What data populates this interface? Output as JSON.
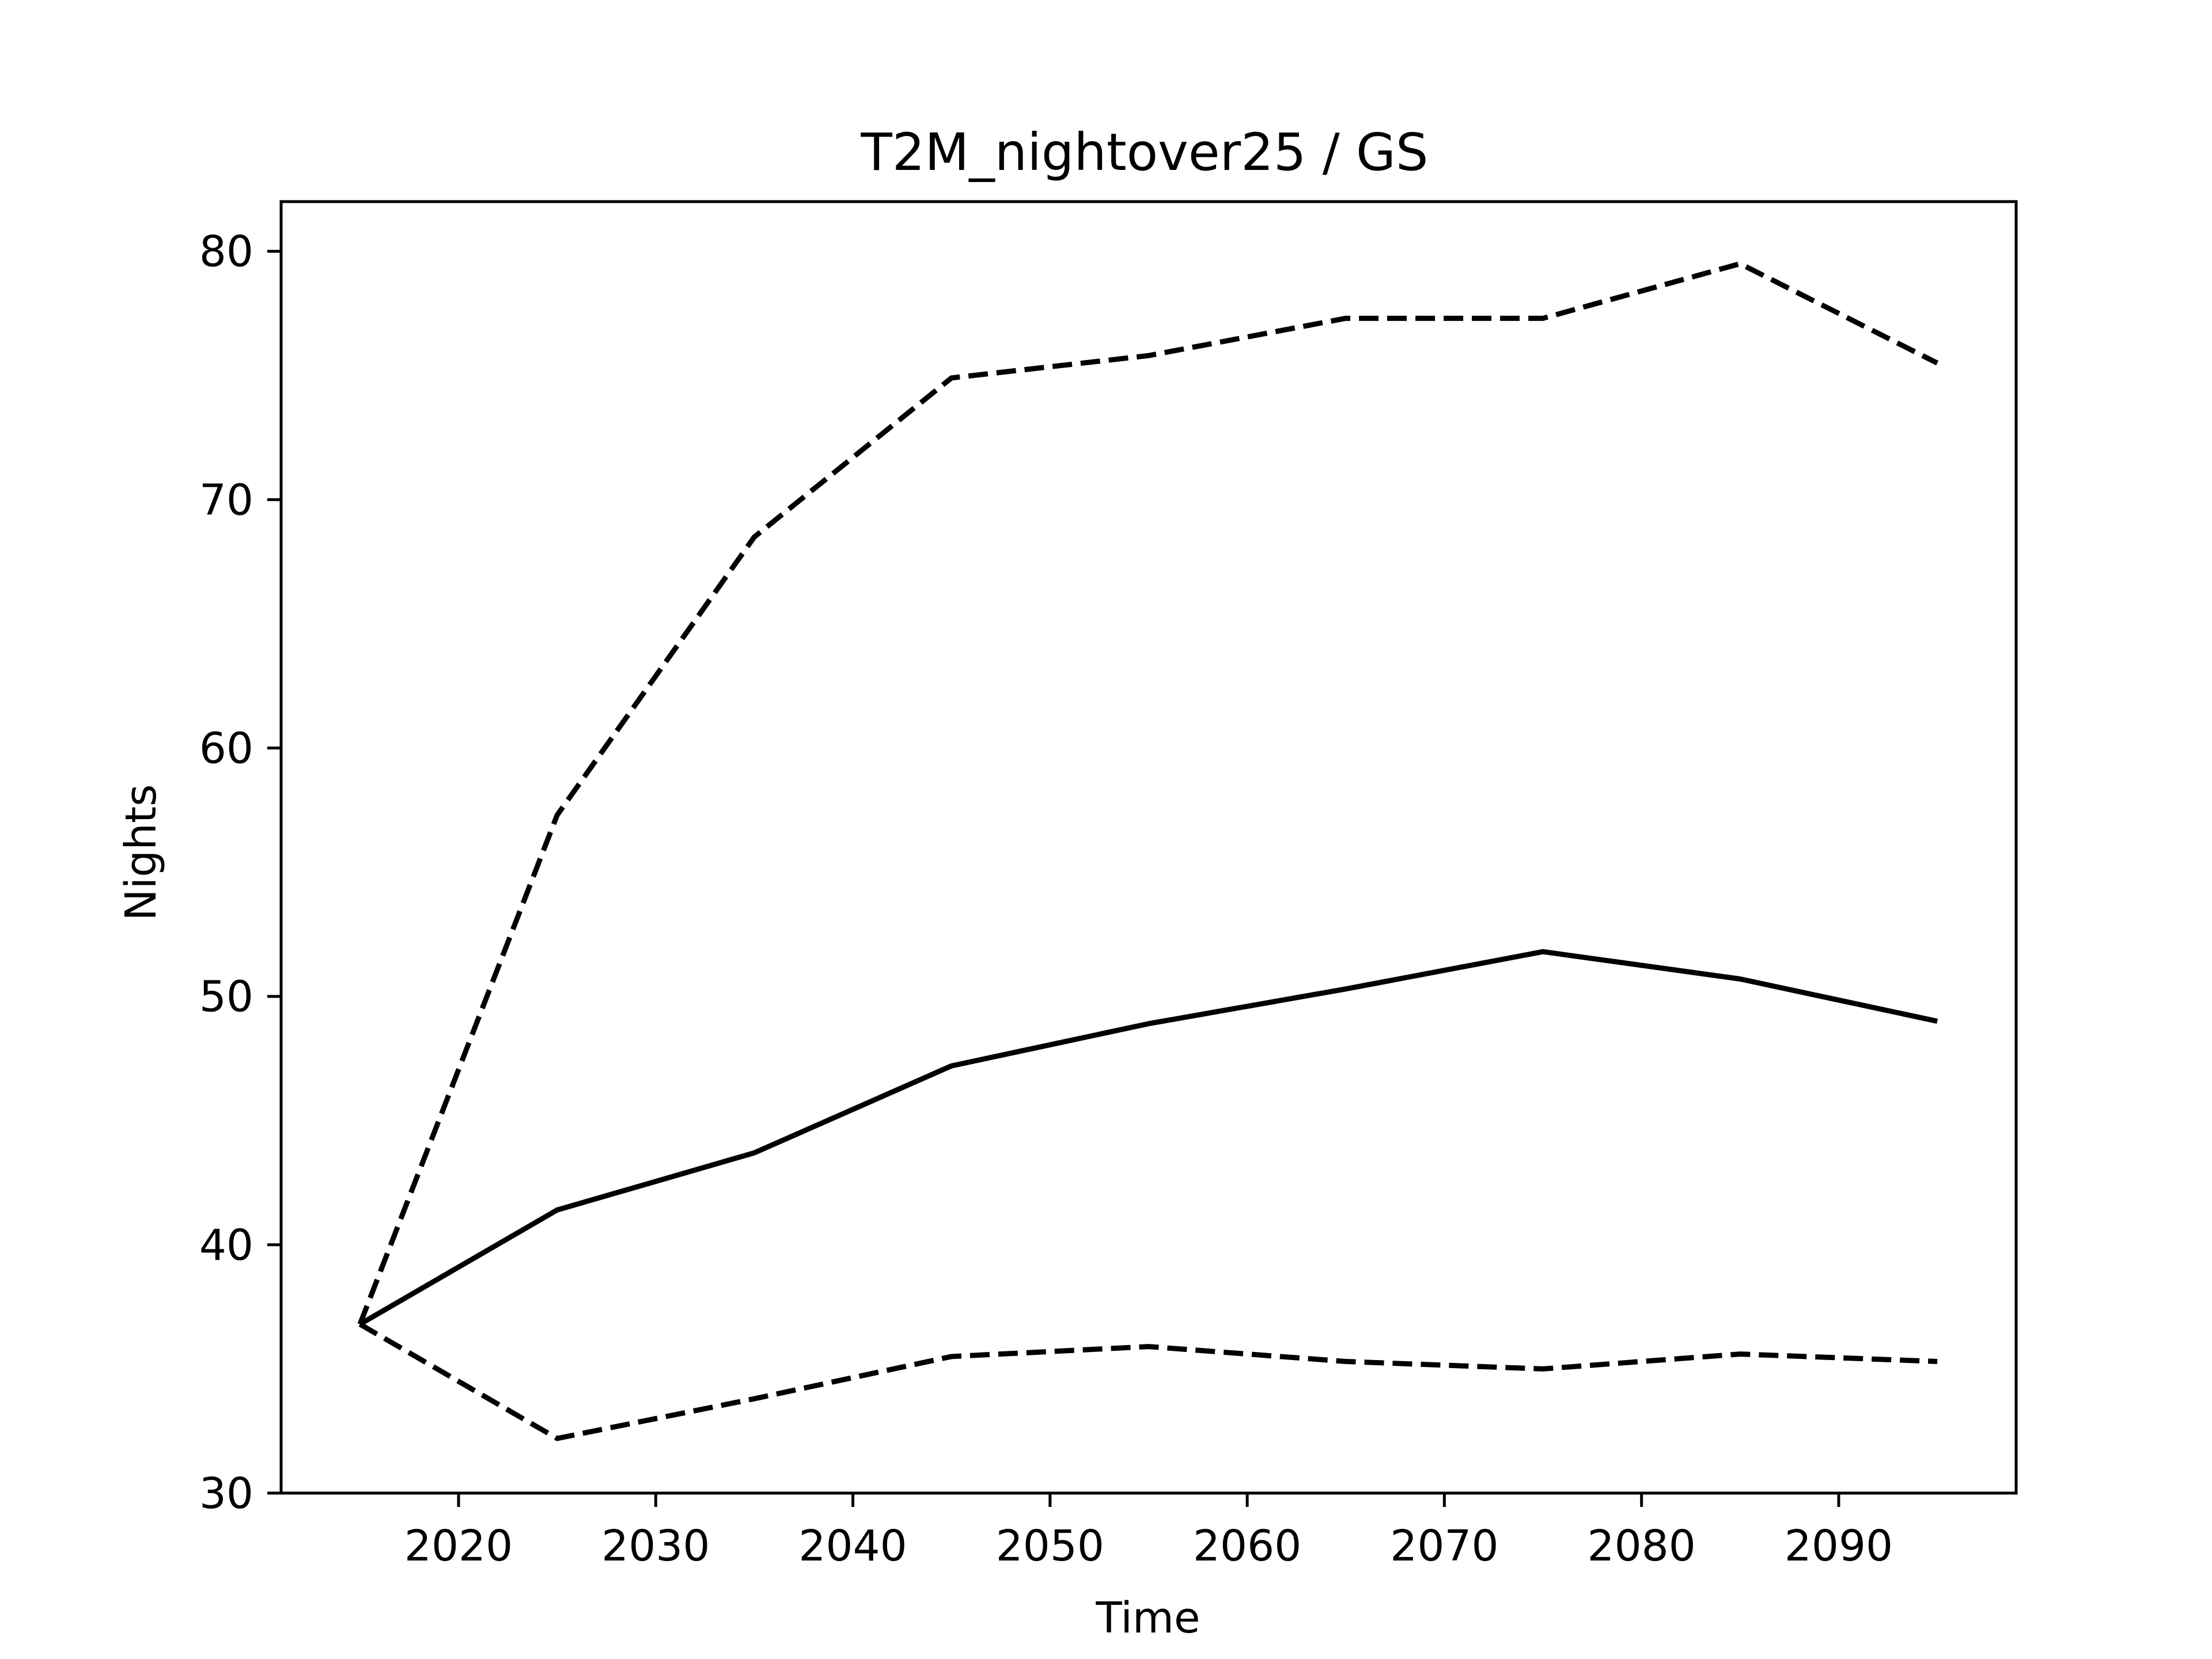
{
  "chart_data": {
    "type": "line",
    "title": "T2M_nightover25 / GS",
    "xlabel": "Time",
    "ylabel": "Nights",
    "xlim": [
      2011,
      2099
    ],
    "ylim": [
      30,
      82
    ],
    "xticks": [
      2020,
      2030,
      2040,
      2050,
      2060,
      2070,
      2080,
      2090
    ],
    "yticks": [
      30,
      40,
      50,
      60,
      70,
      80
    ],
    "grid": false,
    "x": [
      2015,
      2025,
      2035,
      2045,
      2055,
      2065,
      2075,
      2085,
      2095
    ],
    "series": [
      {
        "style": "dashed",
        "color": "#000000",
        "values": [
          36.8,
          57.3,
          68.5,
          74.9,
          75.8,
          77.3,
          77.3,
          79.5,
          75.5
        ]
      },
      {
        "style": "solid",
        "color": "#000000",
        "values": [
          36.8,
          41.4,
          43.7,
          47.2,
          48.9,
          50.3,
          51.8,
          50.7,
          49.0
        ]
      },
      {
        "style": "dashed",
        "color": "#000000",
        "values": [
          36.8,
          32.2,
          33.8,
          35.5,
          35.9,
          35.3,
          35.0,
          35.6,
          35.3
        ]
      }
    ]
  }
}
